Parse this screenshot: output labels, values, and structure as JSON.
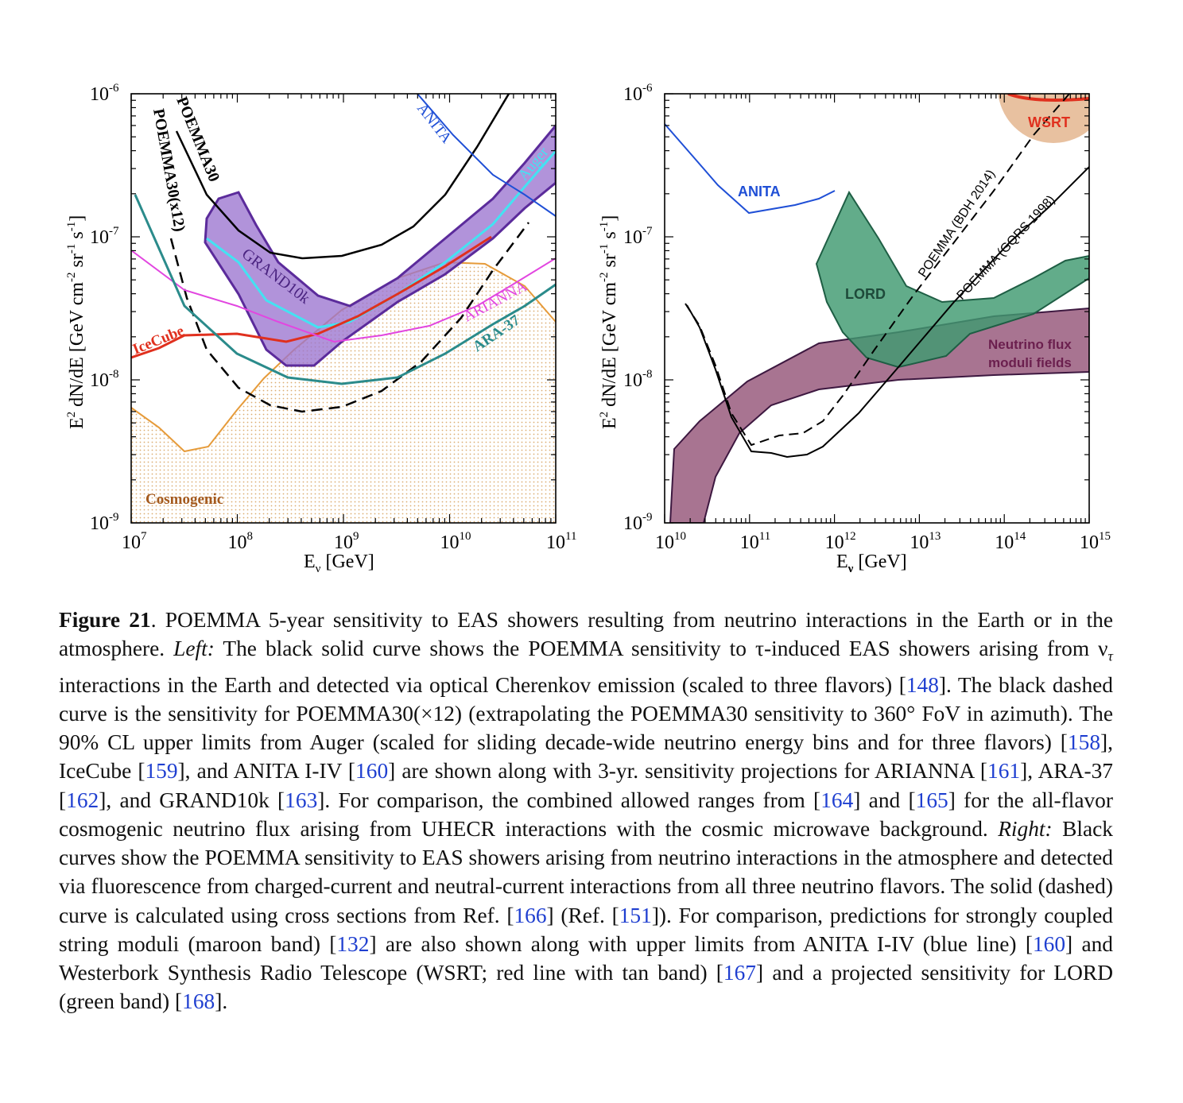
{
  "figure": {
    "left_panel": {
      "y_label_base": "E",
      "y_label_sup": "2",
      "y_label_rest": " dN/dE [GeV cm",
      "y_label_sup2": "-2",
      "y_label_mid": " sr",
      "y_label_sup3": "-1",
      "y_label_mid2": " s",
      "y_label_sup4": "-1",
      "y_label_end": "]",
      "x_label_base": "E",
      "x_label_sub": "ν",
      "x_label_rest": " [GeV]",
      "x_ticks": [
        {
          "base": "10",
          "exp": "7"
        },
        {
          "base": "10",
          "exp": "8"
        },
        {
          "base": "10",
          "exp": "9"
        },
        {
          "base": "10",
          "exp": "10"
        },
        {
          "base": "10",
          "exp": "11"
        }
      ],
      "y_ticks": [
        {
          "base": "10",
          "exp": "-6"
        },
        {
          "base": "10",
          "exp": "-7"
        },
        {
          "base": "10",
          "exp": "-8"
        },
        {
          "base": "10",
          "exp": "-9"
        }
      ],
      "labels": {
        "poemma30": "POEMMA30",
        "poemma30x12": "POEMMA30(x12)",
        "anita": "ANITA",
        "auger": "Auger",
        "grand10k": "GRAND10k",
        "icecube": "IceCube",
        "arianna": "ARIANNA",
        "ara37": "ARA-37",
        "cosmogenic": "Cosmogenic"
      }
    },
    "right_panel": {
      "x_ticks": [
        {
          "base": "10",
          "exp": "10"
        },
        {
          "base": "10",
          "exp": "11"
        },
        {
          "base": "10",
          "exp": "12"
        },
        {
          "base": "10",
          "exp": "13"
        },
        {
          "base": "10",
          "exp": "14"
        },
        {
          "base": "10",
          "exp": "15"
        }
      ],
      "y_ticks": [
        {
          "base": "10",
          "exp": "-6"
        },
        {
          "base": "10",
          "exp": "-7"
        },
        {
          "base": "10",
          "exp": "-8"
        },
        {
          "base": "10",
          "exp": "-9"
        }
      ],
      "labels": {
        "wsrt": "WSRT",
        "anita": "ANITA",
        "lord": "LORD",
        "poemma_bdh": "POEMMA (BDH 2014)",
        "poemma_gqrs": "POEMMA (GQRS 1998)",
        "moduli_1": "Neutrino flux",
        "moduli_2": "moduli fields"
      }
    }
  },
  "chart_data": [
    {
      "type": "line",
      "xlabel": "Eν [GeV]",
      "ylabel": "E2 dN/dE [GeV cm-2 sr-1 s-1]",
      "xscale": "log",
      "yscale": "log",
      "xlim": [
        10000000.0,
        100000000000.0
      ],
      "ylim": [
        1e-09,
        1e-06
      ],
      "series": [
        {
          "name": "POEMMA30",
          "style": "black solid",
          "x": [
            100000000.0,
            300000000.0,
            1000000000.0,
            3000000000.0,
            10000000000.0,
            30000000000.0
          ],
          "y": [
            1.6e-07,
            7.2e-08,
            7.5e-08,
            1.4e-07,
            3.5e-07,
            8e-07
          ]
        },
        {
          "name": "POEMMA30(x12)",
          "style": "black dashed",
          "x": [
            50000000.0,
            100000000.0,
            300000000.0,
            1000000000.0,
            3000000000.0,
            10000000000.0,
            30000000000.0
          ],
          "y": [
            9e-08,
            1.6e-08,
            6e-09,
            6e-09,
            1e-08,
            2.5e-08,
            7e-08
          ]
        },
        {
          "name": "ANITA",
          "style": "blue",
          "x": [
            17000000000.0,
            100000000000.0
          ],
          "y": [
            1e-06,
            1.5e-07
          ]
        },
        {
          "name": "Auger",
          "style": "cyan band",
          "x": [
            50000000.0,
            100000000.0,
            200000000.0,
            500000000.0,
            1000000000.0,
            3000000000.0,
            10000000000.0,
            30000000000.0,
            100000000000.0
          ],
          "y": [
            1.2e-07,
            6e-08,
            3.5e-08,
            2.3e-08,
            2.3e-08,
            4.5e-08,
            1e-07,
            2.2e-07,
            4e-07
          ]
        },
        {
          "name": "GRAND10k",
          "style": "purple band",
          "x": [
            50000000.0,
            100000000.0,
            300000000.0,
            1000000000.0,
            3000000000.0,
            10000000000.0,
            30000000000.0,
            100000000000.0
          ],
          "y": [
            8e-08,
            4e-08,
            1.5e-08,
            2e-08,
            4e-08,
            1e-07,
            2.5e-07,
            6e-07
          ]
        },
        {
          "name": "IceCube",
          "style": "red",
          "x": [
            10000000.0,
            30000000.0,
            100000000.0,
            400000000.0,
            1000000000.0,
            3000000000.0,
            10000000000.0,
            25000000000.0
          ],
          "y": [
            1.4e-08,
            2e-08,
            2.1e-08,
            1.8e-08,
            2.5e-08,
            4e-08,
            6.5e-08,
            9.5e-08
          ]
        },
        {
          "name": "ARIANNA",
          "style": "magenta",
          "x": [
            10000000.0,
            30000000.0,
            100000000.0,
            300000000.0,
            1000000000.0,
            3000000000.0,
            10000000000.0,
            30000000000.0,
            100000000000.0
          ],
          "y": [
            7.5e-08,
            3.5e-08,
            2.8e-08,
            2.2e-08,
            1.9e-08,
            2.4e-08,
            3e-08,
            4.5e-08,
            7e-08
          ]
        },
        {
          "name": "ARA-37",
          "style": "teal",
          "x": [
            10000000.0,
            30000000.0,
            100000000.0,
            200000000.0,
            1000000000.0,
            3000000000.0,
            10000000000.0,
            100000000000.0
          ],
          "y": [
            1.8e-07,
            3.2e-08,
            1.3e-08,
            1e-08,
            9e-09,
            1e-08,
            1.5e-08,
            4.5e-08
          ]
        },
        {
          "name": "Cosmogenic",
          "style": "orange band",
          "x": [
            10000000.0,
            30000000.0,
            50000000.0,
            100000000.0,
            200000000.0,
            1000000000.0,
            3000000000.0,
            10000000000.0,
            30000000000.0,
            100000000000.0
          ],
          "y": [
            6e-09,
            2.8e-09,
            3e-09,
            4.5e-09,
            8e-09,
            2.5e-08,
            5e-08,
            6.5e-08,
            5e-08,
            2.5e-08
          ]
        }
      ]
    },
    {
      "type": "line",
      "xlabel": "Eν [GeV]",
      "ylabel": "E2 dN/dE [GeV cm-2 sr-1 s-1]",
      "xscale": "log",
      "yscale": "log",
      "xlim": [
        10000000000.0,
        1000000000000000.0
      ],
      "ylim": [
        1e-09,
        1e-06
      ],
      "series": [
        {
          "name": "ANITA",
          "style": "blue",
          "x": [
            10000000000.0,
            50000000000.0,
            100000000000.0,
            500000000000.0,
            1000000000000.0
          ],
          "y": [
            6e-07,
            2.2e-07,
            1.4e-07,
            1.6e-07,
            2e-07
          ]
        },
        {
          "name": "LORD",
          "style": "green band",
          "x": [
            1000000000000.0,
            1500000000000.0,
            3000000000000.0,
            10000000000000.0,
            30000000000000.0,
            100000000000000.0,
            1000000000000000.0
          ],
          "y": [
            6e-08,
            2e-07,
            6e-08,
            3e-08,
            3e-08,
            4e-08,
            7e-08
          ]
        },
        {
          "name": "Neutrino flux moduli fields",
          "style": "maroon band",
          "x": [
            10000000000.0,
            30000000000.0,
            100000000000.0,
            1000000000000.0,
            10000000000000.0,
            100000000000000.0,
            1000000000000000.0
          ],
          "y": [
            3e-09,
            6e-09,
            1.2e-08,
            2e-08,
            2.5e-08,
            3e-08,
            3e-08
          ]
        },
        {
          "name": "POEMMA (BDH 2014)",
          "style": "black dashed",
          "x": [
            15000000000.0,
            50000000000.0,
            100000000000.0,
            500000000000.0,
            1000000000000.0,
            10000000000000.0,
            100000000000000.0,
            300000000000000.0
          ],
          "y": [
            3.2e-08,
            5e-09,
            3.3e-09,
            3.8e-09,
            4.5e-09,
            3e-08,
            3e-07,
            1e-06
          ]
        },
        {
          "name": "POEMMA (GQRS 1998)",
          "style": "black solid",
          "x": [
            15000000000.0,
            50000000000.0,
            100000000000.0,
            500000000000.0,
            1000000000000.0,
            10000000000000.0,
            100000000000000.0,
            1000000000000000.0
          ],
          "y": [
            3.2e-08,
            5e-09,
            2.8e-09,
            2.8e-09,
            3.5e-09,
            1.2e-08,
            6e-08,
            2e-07
          ]
        },
        {
          "name": "WSRT",
          "style": "red line, tan band",
          "x": [
            200000000000000.0,
            1000000000000000.0
          ],
          "y": [
            1e-06,
            9e-07
          ]
        }
      ]
    }
  ],
  "caption": {
    "label": "Figure 21",
    "text_1": ". POEMMA 5-year sensitivity to EAS showers resulting from neutrino interactions in the Earth or in the atmosphere. ",
    "left_label": "Left:",
    "text_2": " The black solid curve shows the POEMMA sensitivity to τ-induced EAS showers arising from ν",
    "text_2_sub": "τ",
    "text_3": " interactions in the Earth and detected via optical Cherenkov emission (scaled to three flavors) [",
    "ref_148": "148",
    "text_4": "]. The black dashed curve is the sensitivity for POEMMA30(×12) (extrapolating the POEMMA30 sensitivity to 360° FoV in azimuth). The 90% CL upper limits from Auger (scaled for sliding decade-wide neutrino energy bins and for three flavors) [",
    "ref_158": "158",
    "text_5": "], IceCube [",
    "ref_159": "159",
    "text_6": "], and ANITA I-IV [",
    "ref_160a": "160",
    "text_7": "] are shown along with 3-yr. sensitivity projections for ARIANNA [",
    "ref_161": "161",
    "text_8": "], ARA-37 [",
    "ref_162": "162",
    "text_9": "], and GRAND10k [",
    "ref_163": "163",
    "text_10": "]. For comparison, the combined allowed ranges from [",
    "ref_164": "164",
    "text_11": "] and [",
    "ref_165": "165",
    "text_12": "] for the all-flavor cosmogenic neutrino flux arising from UHECR interactions with the cosmic microwave background. ",
    "right_label": "Right:",
    "text_13": " Black curves show the POEMMA sensitivity to EAS showers arising from neutrino interactions in the atmosphere and detected via fluorescence from charged-current and neutral-current interactions from all three neutrino flavors. The solid (dashed) curve is calculated using cross sections from Ref. [",
    "ref_166": "166",
    "text_14": "] (Ref. [",
    "ref_151": "151",
    "text_15": "]). For comparison, predictions for strongly coupled string moduli (maroon band) [",
    "ref_132": "132",
    "text_16": "] are also shown along with upper limits from ANITA I-IV (blue line) [",
    "ref_160b": "160",
    "text_17": "] and Westerbork Synthesis Radio Telescope (WSRT; red line with tan band) [",
    "ref_167": "167",
    "text_18": "] and a projected sensitivity for LORD (green band) [",
    "ref_168": "168",
    "text_19": "]."
  }
}
